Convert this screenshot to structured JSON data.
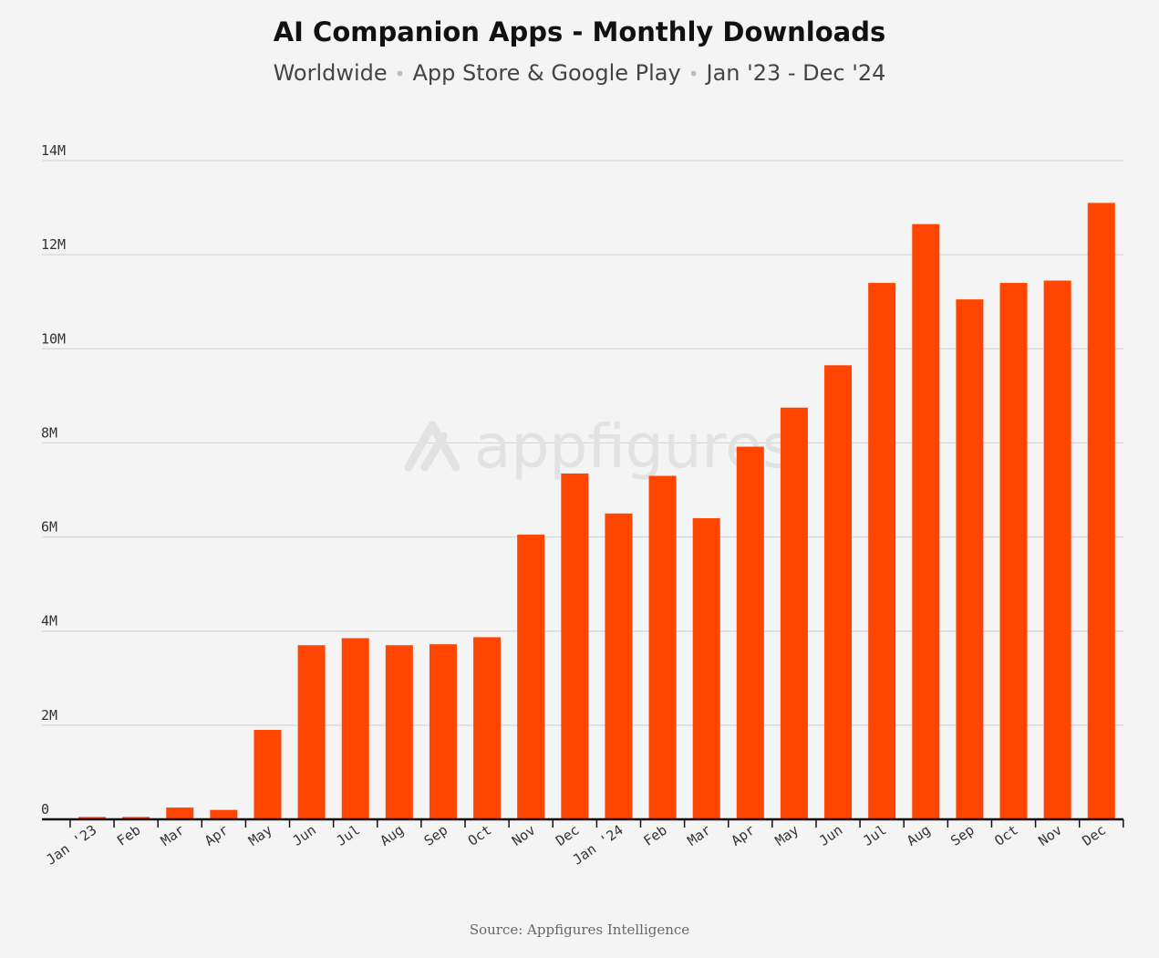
{
  "title": "AI Companion Apps - Monthly Downloads",
  "subtitle": {
    "part1": "Worldwide",
    "part2": "App Store & Google Play",
    "part3": "Jan '23 - Dec '24",
    "separator": "•"
  },
  "watermark": "appfigures",
  "source": "Source: Appfigures Intelligence",
  "colors": {
    "bar": "#ff4500",
    "grid": "#d6d6d6",
    "axis": "#111111",
    "tick_text": "#333333",
    "watermark": "#e2e2e2"
  },
  "chart_data": {
    "type": "bar",
    "categories": [
      "Jan '23",
      "Feb",
      "Mar",
      "Apr",
      "May",
      "Jun",
      "Jul",
      "Aug",
      "Sep",
      "Oct",
      "Nov",
      "Dec",
      "Jan '24",
      "Feb",
      "Mar",
      "Apr",
      "May",
      "Jun",
      "Jul",
      "Aug",
      "Sep",
      "Oct",
      "Nov",
      "Dec"
    ],
    "values": [
      0.05,
      0.05,
      0.25,
      0.2,
      1.9,
      3.7,
      3.85,
      3.7,
      3.72,
      3.87,
      6.05,
      7.35,
      6.5,
      7.3,
      6.4,
      7.92,
      8.75,
      9.65,
      11.4,
      12.65,
      11.05,
      11.4,
      11.45,
      13.1
    ],
    "unit": "M",
    "ylim": [
      0,
      14
    ],
    "yticks": [
      0,
      2,
      4,
      6,
      8,
      10,
      12,
      14
    ],
    "ytick_labels": [
      "0",
      "2M",
      "4M",
      "6M",
      "8M",
      "10M",
      "12M",
      "14M"
    ],
    "grid": true,
    "xlabel": "",
    "ylabel": ""
  }
}
